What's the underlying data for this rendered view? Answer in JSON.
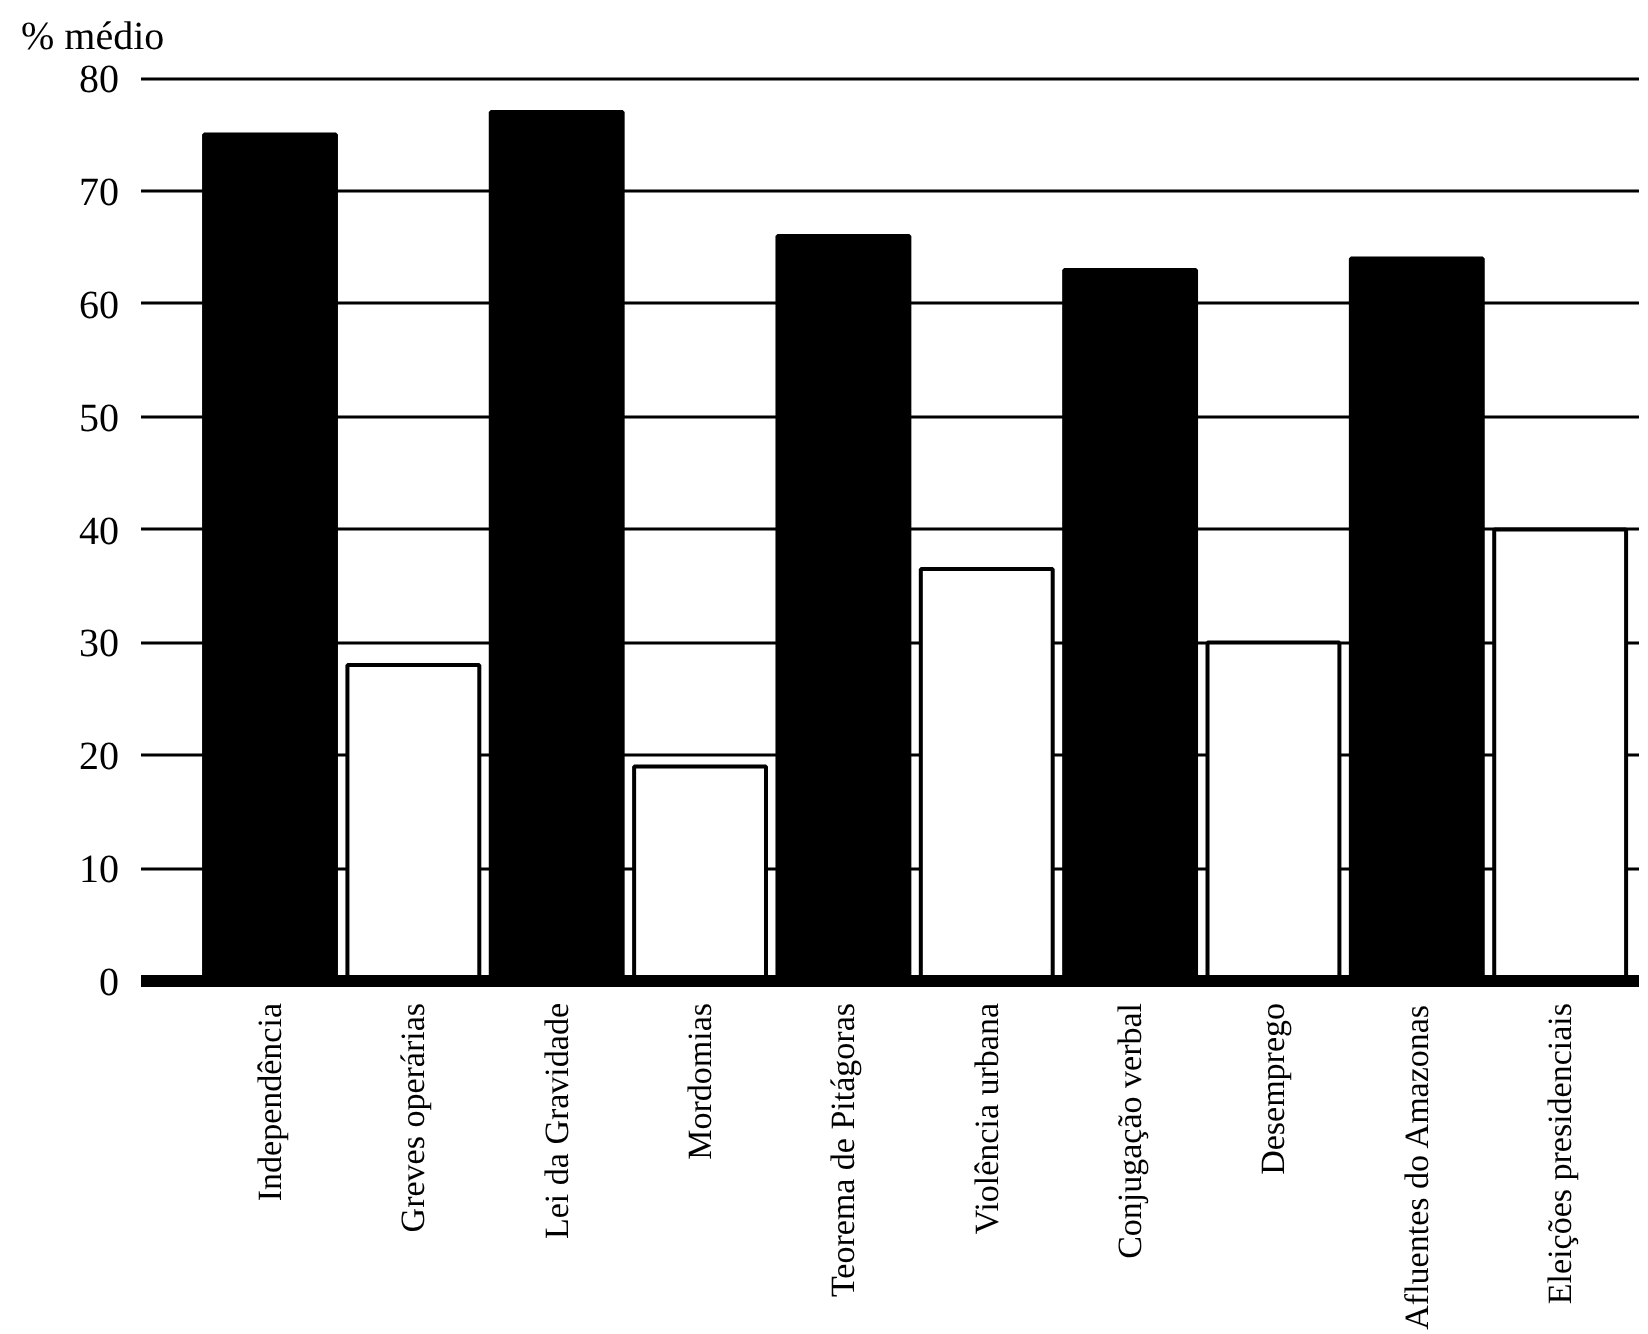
{
  "chart_data": {
    "type": "bar",
    "ylabel": "% médio",
    "categories": [
      "Independência",
      "Greves operárias",
      "Lei da Gravidade",
      "Mordomias",
      "Teorema de Pitágoras",
      "Violência urbana",
      "Conjugação verbal",
      "Desemprego",
      "Afluentes do Amazonas",
      "Eleições presidenciais"
    ],
    "values": [
      75,
      28,
      77,
      19,
      66,
      36.5,
      63,
      30,
      64,
      40
    ],
    "colors": [
      "#000000",
      "#ffffff",
      "#000000",
      "#ffffff",
      "#000000",
      "#ffffff",
      "#000000",
      "#ffffff",
      "#000000",
      "#ffffff"
    ],
    "ylim": [
      0,
      80
    ],
    "yticks": [
      0,
      10,
      20,
      30,
      40,
      50,
      60,
      70,
      80
    ],
    "grid": "y"
  }
}
